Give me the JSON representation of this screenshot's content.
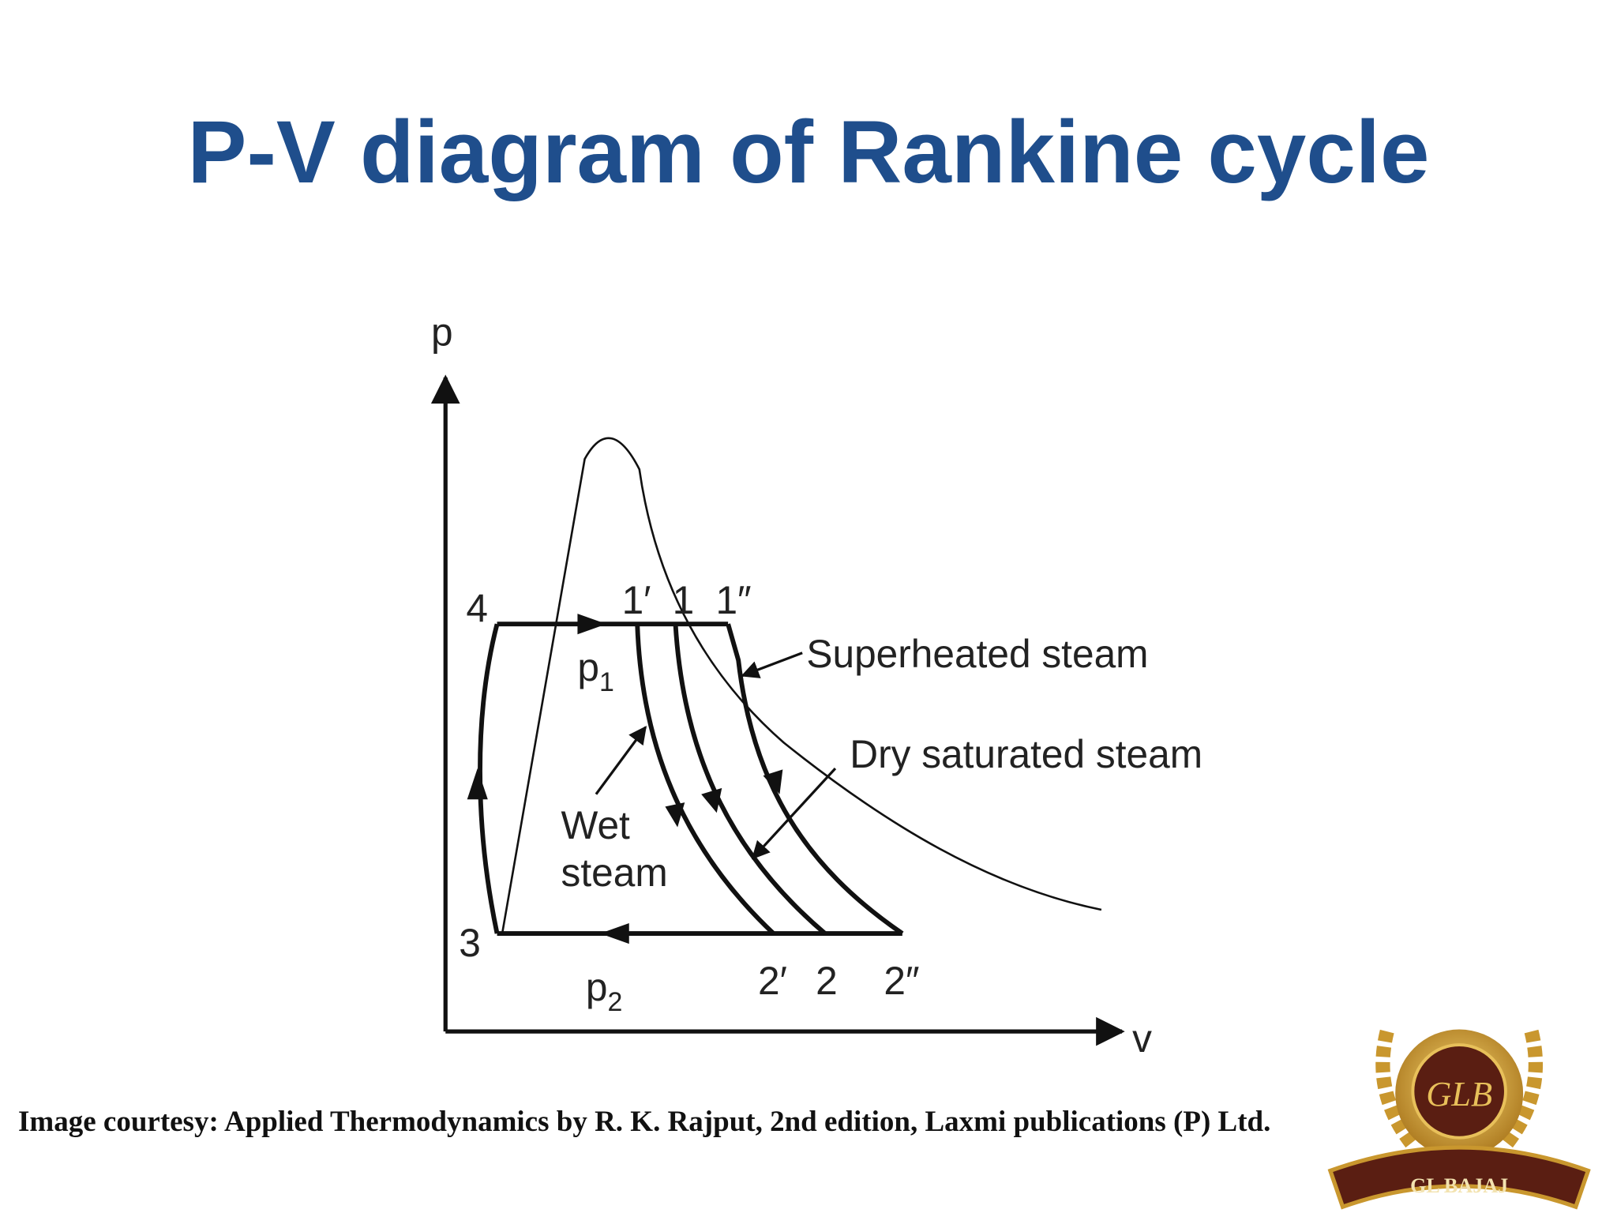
{
  "header": {
    "title": "P-V diagram of Rankine cycle"
  },
  "diagram": {
    "axes": {
      "y": "p",
      "x": "v"
    },
    "points": [
      "4",
      "1′",
      "1",
      "1″",
      "3",
      "2′",
      "2",
      "2″"
    ],
    "pressures": [
      {
        "base": "p",
        "sub": "1"
      },
      {
        "base": "p",
        "sub": "2"
      }
    ],
    "annotations": [
      "Superheated steam",
      "Dry saturated steam",
      "Wet",
      "steam"
    ]
  },
  "footer": {
    "courtesy": "Image courtesy: Applied Thermodynamics by R. K. Rajput, 2nd edition, Laxmi publications (P) Ltd."
  },
  "logo": {
    "monogram": "GLB",
    "name": "GL BAJAJ"
  }
}
